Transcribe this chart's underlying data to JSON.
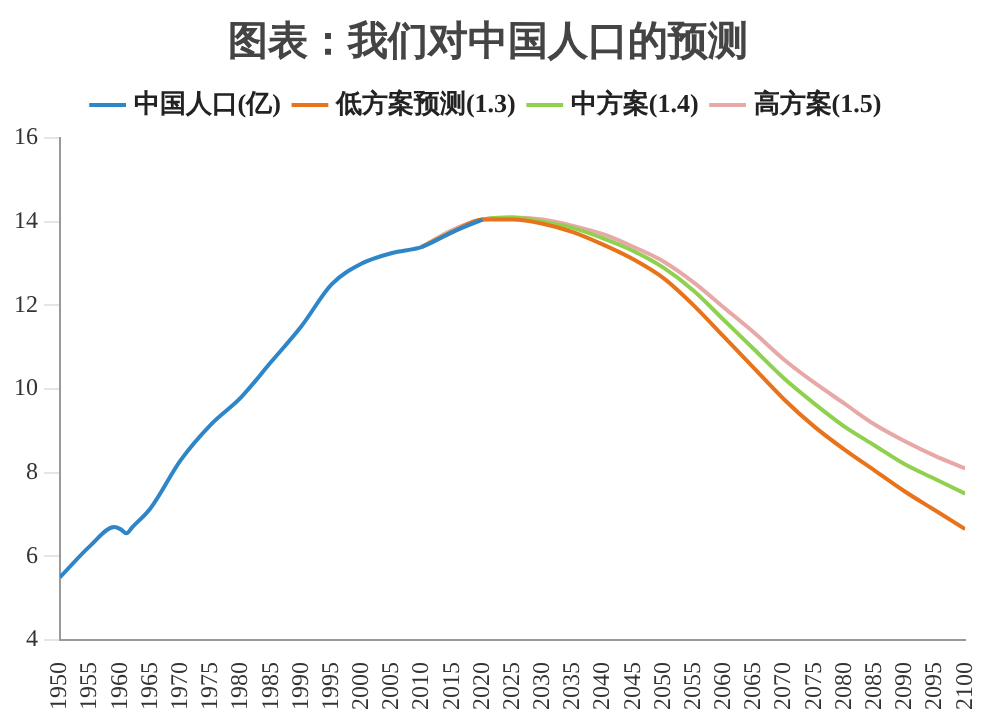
{
  "chart_data": {
    "type": "line",
    "title": "图表：我们对中国人口的预测",
    "xlim": [
      1950,
      2100
    ],
    "xticks": [
      1950,
      1955,
      1960,
      1965,
      1970,
      1975,
      1980,
      1985,
      1990,
      1995,
      2000,
      2005,
      2010,
      2015,
      2020,
      2025,
      2030,
      2035,
      2040,
      2045,
      2050,
      2055,
      2060,
      2065,
      2070,
      2075,
      2080,
      2085,
      2090,
      2095,
      2100
    ],
    "ylim": [
      4,
      16
    ],
    "yticks": [
      4,
      6,
      8,
      10,
      12,
      14,
      16
    ],
    "grid": false,
    "legend": "top",
    "marker": "none",
    "line_style": "solid",
    "series": [
      {
        "name": "中国人口(亿)",
        "color": "#2e86c8",
        "x": [
          1950,
          1955,
          1959,
          1960,
          1961,
          1962,
          1965,
          1970,
          1975,
          1980,
          1985,
          1990,
          1995,
          2000,
          2005,
          2010,
          2015,
          2020
        ],
        "values": [
          5.5,
          6.25,
          6.7,
          6.65,
          6.55,
          6.7,
          7.15,
          8.3,
          9.15,
          9.8,
          10.65,
          11.5,
          12.5,
          13.0,
          13.25,
          13.4,
          13.75,
          14.05
        ]
      },
      {
        "name": "低方案预测(1.3)",
        "color": "#e8731a",
        "x": [
          2010,
          2015,
          2020,
          2025,
          2030,
          2035,
          2040,
          2045,
          2050,
          2055,
          2060,
          2065,
          2070,
          2075,
          2080,
          2085,
          2090,
          2095,
          2100
        ],
        "values": [
          13.4,
          13.75,
          14.05,
          14.05,
          13.95,
          13.75,
          13.45,
          13.1,
          12.65,
          12.0,
          11.25,
          10.5,
          9.75,
          9.1,
          8.55,
          8.05,
          7.55,
          7.1,
          6.65
        ]
      },
      {
        "name": "中方案(1.4)",
        "color": "#8fd14f",
        "x": [
          2010,
          2015,
          2020,
          2025,
          2030,
          2035,
          2040,
          2045,
          2050,
          2055,
          2060,
          2065,
          2070,
          2075,
          2080,
          2085,
          2090,
          2095,
          2100
        ],
        "values": [
          13.4,
          13.75,
          14.05,
          14.1,
          14.0,
          13.85,
          13.6,
          13.3,
          12.9,
          12.35,
          11.65,
          10.95,
          10.25,
          9.65,
          9.1,
          8.65,
          8.2,
          7.85,
          7.5
        ]
      },
      {
        "name": "高方案(1.5)",
        "color": "#e8a8a8",
        "x": [
          2010,
          2015,
          2020,
          2025,
          2030,
          2035,
          2040,
          2045,
          2050,
          2055,
          2060,
          2065,
          2070,
          2075,
          2080,
          2085,
          2090,
          2095,
          2100
        ],
        "values": [
          13.4,
          13.8,
          14.05,
          14.1,
          14.05,
          13.9,
          13.7,
          13.4,
          13.05,
          12.55,
          11.95,
          11.35,
          10.7,
          10.15,
          9.65,
          9.15,
          8.75,
          8.4,
          8.1
        ]
      }
    ]
  }
}
